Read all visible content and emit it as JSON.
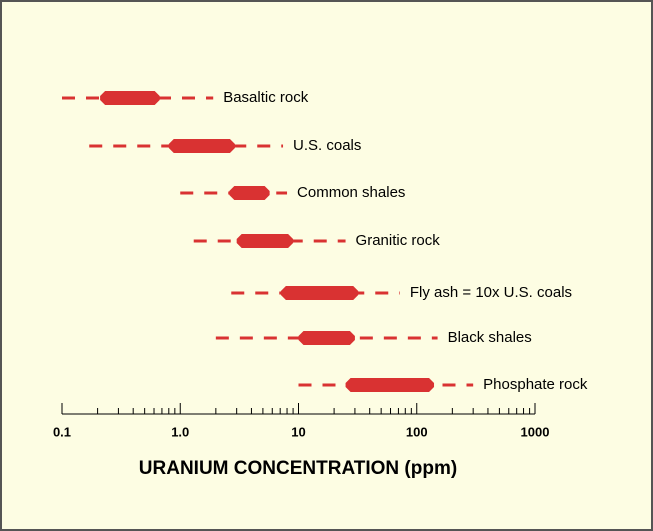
{
  "chart_data": {
    "type": "range",
    "x_label": "URANIUM CONCENTRATION (ppm)",
    "xscale": "log",
    "xlim": [
      0.1,
      1000
    ],
    "xticks": [
      0.1,
      {
        "value": 1,
        "label": "1.0"
      },
      10,
      100,
      1000
    ],
    "minor_xticks": [
      0.2,
      0.3,
      0.4,
      0.5,
      0.6,
      0.7,
      0.8,
      0.9,
      2,
      3,
      4,
      5,
      6,
      7,
      8,
      9,
      20,
      30,
      40,
      50,
      60,
      70,
      80,
      90,
      200,
      300,
      400,
      500,
      600,
      700,
      800,
      900
    ],
    "color": "#d93232",
    "categories": [
      "Basaltic rock",
      "U.S. coals",
      "Common shales",
      "Granitic rock",
      "Fly ash = 10x U.S. coals",
      "Black shales",
      "Phosphate rock"
    ],
    "full_range": [
      [
        0.1,
        1.9
      ],
      [
        0.17,
        7.4
      ],
      [
        1,
        8
      ],
      [
        1.3,
        25
      ],
      [
        2.7,
        72
      ],
      [
        2,
        150
      ],
      [
        10,
        300
      ]
    ],
    "typical_range": [
      [
        0.21,
        0.67
      ],
      [
        0.8,
        2.9
      ],
      [
        2.6,
        5.7
      ],
      [
        3,
        9
      ],
      [
        7.1,
        32
      ],
      [
        10,
        30
      ],
      [
        25,
        140
      ]
    ]
  }
}
